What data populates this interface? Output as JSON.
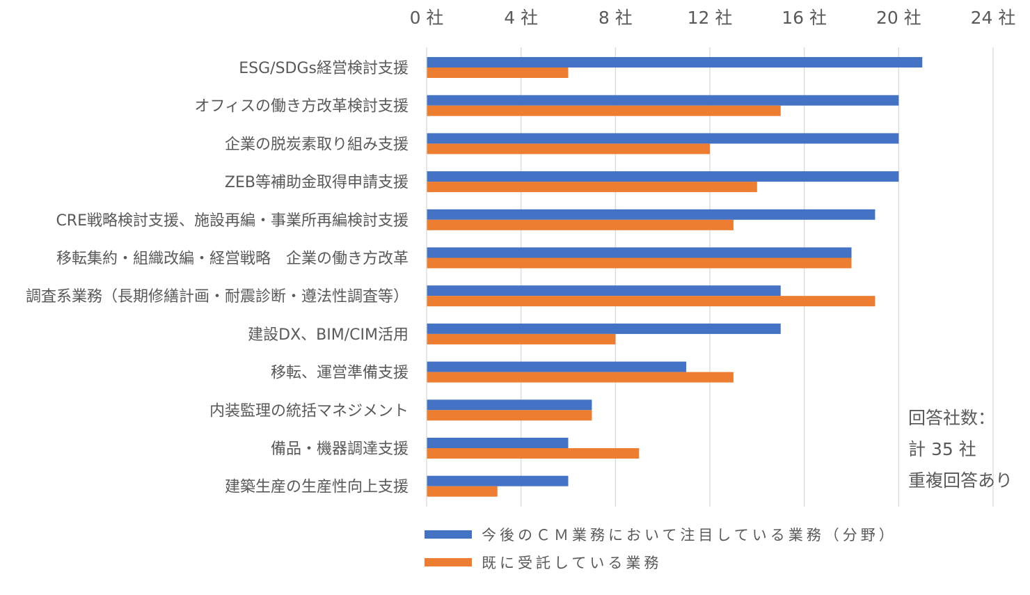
{
  "chart_data": {
    "type": "bar",
    "orientation": "horizontal",
    "categories": [
      "ESG/SDGs経営検討支援",
      "オフィスの働き方改革検討支援",
      "企業の脱炭素取り組み支援",
      "ZEB等補助金取得申請支援",
      "CRE戦略検討支援、施設再編・事業所再編検討支援",
      "移転集約・組織改編・経営戦略　企業の働き方改革",
      "調査系業務（長期修繕計画・耐震診断・遵法性調査等）",
      "建設DX、BIM/CIM活用",
      "移転、運営準備支援",
      "内装監理の統括マネジメント",
      "備品・機器調達支援",
      "建築生産の生産性向上支援"
    ],
    "series": [
      {
        "name": "今後のＣＭ業務において注目している業務（分野）",
        "color": "#4472C4",
        "values": [
          21,
          20,
          20,
          20,
          19,
          18,
          15,
          15,
          11,
          7,
          6,
          6
        ]
      },
      {
        "name": "既に受託している業務",
        "color": "#ED7D31",
        "values": [
          6,
          15,
          12,
          14,
          13,
          18,
          19,
          8,
          13,
          7,
          9,
          3
        ]
      }
    ],
    "x_ticks": [
      0,
      4,
      8,
      12,
      16,
      20,
      24
    ],
    "x_tick_labels": [
      "0 社",
      "4 社",
      "8 社",
      "12 社",
      "16 社",
      "20 社",
      "24 社"
    ],
    "xlim": [
      0,
      24
    ],
    "axis_position": "top",
    "grid": true,
    "legend_position": "bottom-left"
  },
  "note": {
    "lines": [
      "回答社数：",
      "計 35 社",
      "重複回答あり"
    ]
  }
}
